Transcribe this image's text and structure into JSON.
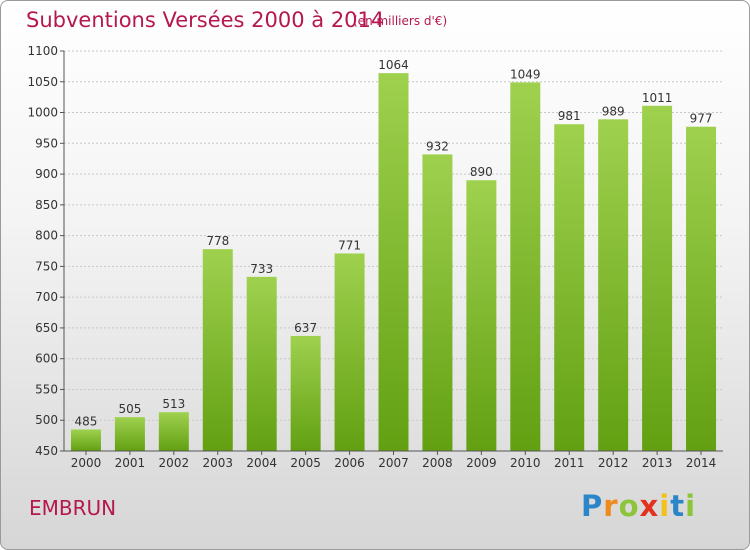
{
  "title": "Subventions Versées 2000 à 2014",
  "subtitle": "(en milliers d'€)",
  "city": "EMBRUN",
  "logo": {
    "letters": [
      "P",
      "r",
      "o",
      "x",
      "i",
      "t",
      "i"
    ],
    "colors": [
      "#2a86c8",
      "#f08a1c",
      "#8cc43a",
      "#e2321f",
      "#f2c21b",
      "#2a86c8",
      "#8cc43a"
    ]
  },
  "colors": {
    "bar_light": "#9fd14f",
    "bar_dark": "#62a012",
    "axis_text": "#333333",
    "grid": "#c8c8c8"
  },
  "chart_data": {
    "type": "bar",
    "title": "Subventions Versées 2000 à 2014",
    "subtitle": "(en milliers d'€)",
    "categories": [
      "2000",
      "2001",
      "2002",
      "2003",
      "2004",
      "2005",
      "2006",
      "2007",
      "2008",
      "2009",
      "2010",
      "2011",
      "2012",
      "2013",
      "2014"
    ],
    "values": [
      485,
      505,
      513,
      778,
      733,
      637,
      771,
      1064,
      932,
      890,
      1049,
      981,
      989,
      1011,
      977
    ],
    "ylim": [
      450,
      1100
    ],
    "yticks": [
      "450",
      "500",
      "550",
      "600",
      "650",
      "700",
      "750",
      "800",
      "850",
      "900",
      "950",
      "1000",
      "1050",
      "1100"
    ],
    "grid": true,
    "legend": "none"
  }
}
